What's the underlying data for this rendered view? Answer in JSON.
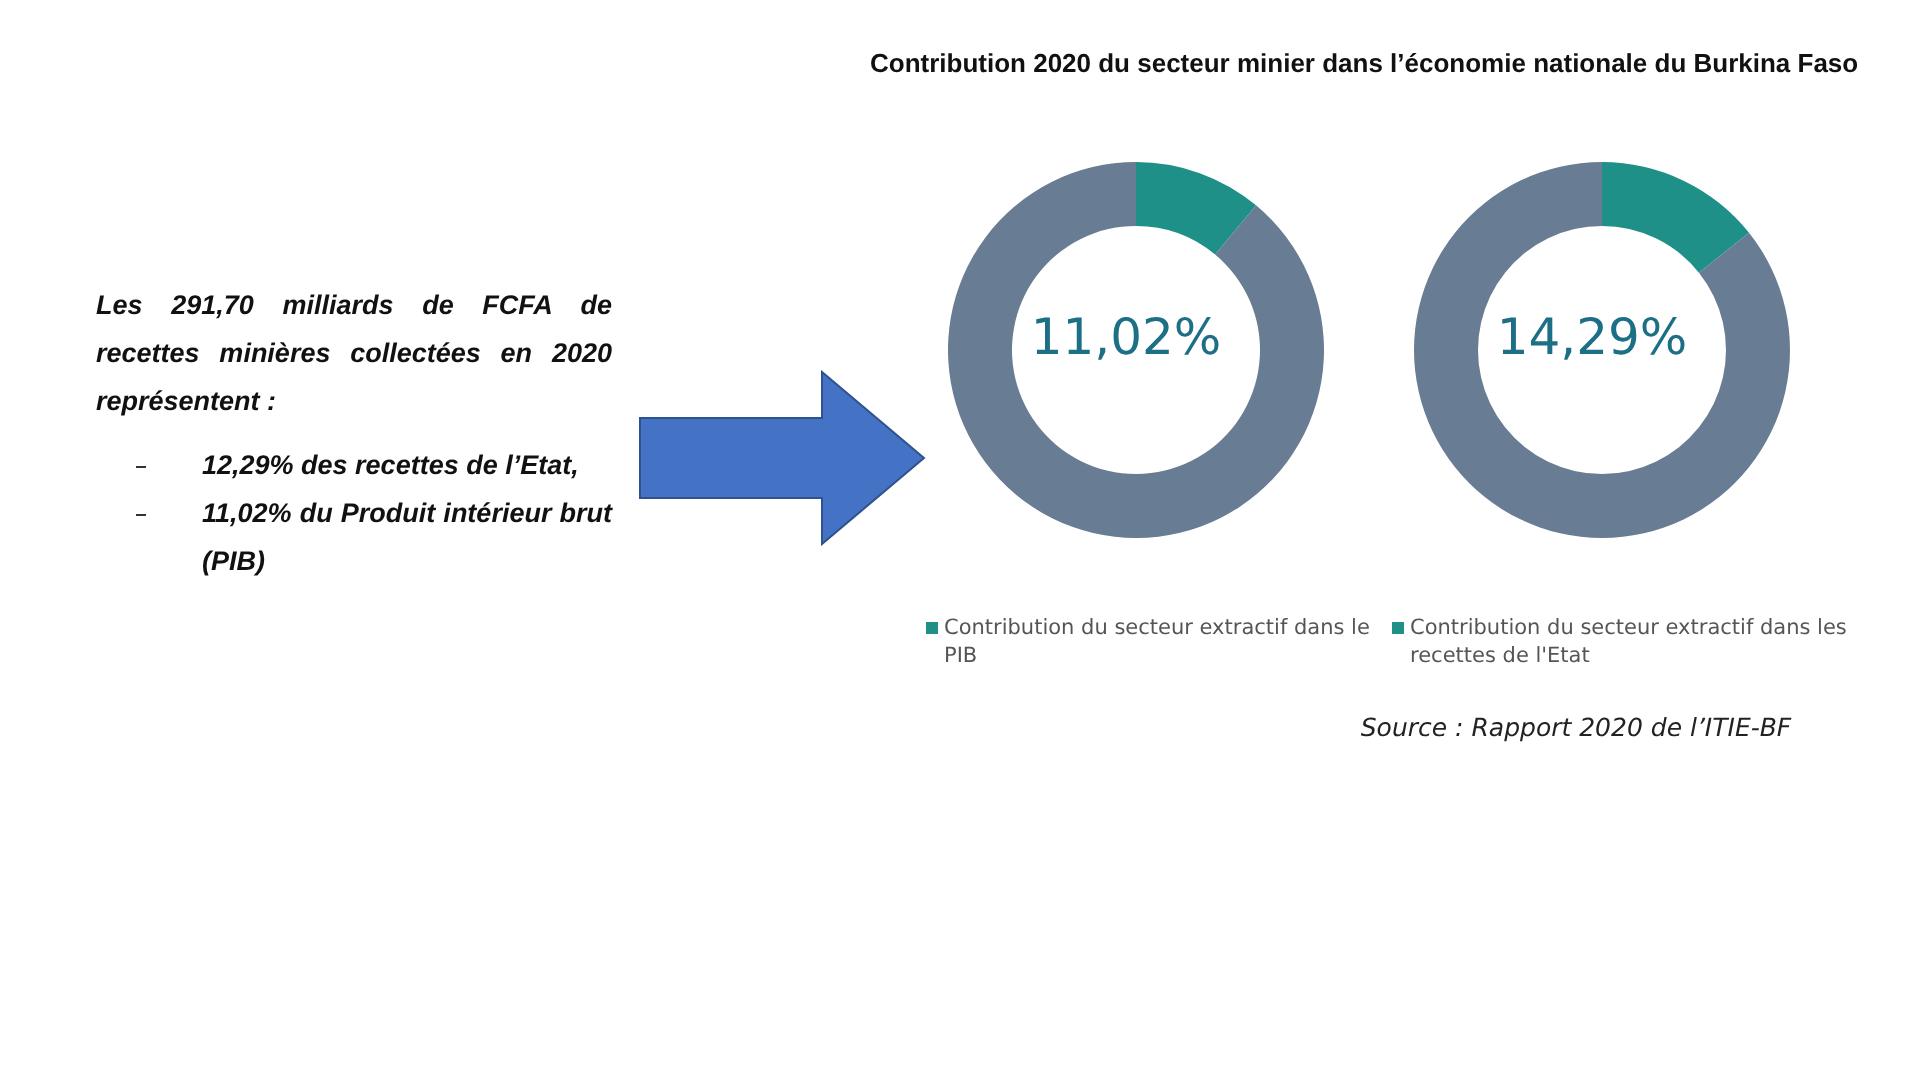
{
  "chart_data": [
    {
      "type": "donut",
      "title": "Contribution 2020 du secteur minier dans l’économie nationale du Burkina Faso",
      "categories": [
        "Contribution du secteur extractif dans le PIB",
        null
      ],
      "values": [
        11.02,
        88.98
      ],
      "colors": [
        "#1e9088",
        "#687c93"
      ],
      "legend": "bottom",
      "annotations": [
        "11,02%"
      ]
    },
    {
      "type": "donut",
      "categories": [
        "Contribution du secteur extractif dans les recettes de l'Etat",
        null
      ],
      "values": [
        14.29,
        85.71
      ],
      "colors": [
        "#1e9088",
        "#687c93"
      ],
      "legend": "bottom",
      "annotations": [
        "14,29%",
        "Source : Rapport 2020 de l’ITIE-BF"
      ]
    },
    {
      "type": "other",
      "annotations": [
        "Les 291,70 milliards de FCFA de recettes minières collectées en 2020 représentent :",
        "12,29% des recettes de l’Etat,",
        "11,02% du Produit intérieur brut (PIB)"
      ]
    }
  ]
}
